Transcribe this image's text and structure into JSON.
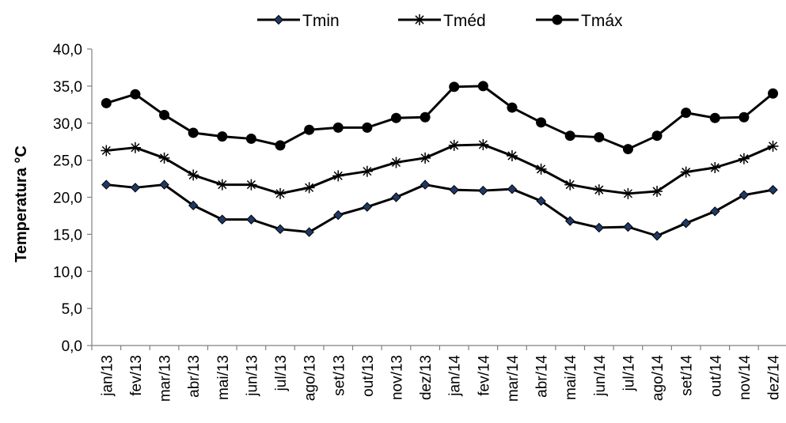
{
  "chart_data": {
    "type": "line",
    "title": "",
    "xlabel": "",
    "ylabel": "Temperatura °C",
    "ylim": [
      0,
      40
    ],
    "yticks": [
      "0,0",
      "5,0",
      "10,0",
      "15,0",
      "20,0",
      "25,0",
      "30,0",
      "35,0",
      "40,0"
    ],
    "grid": false,
    "legend_position": "top",
    "categories": [
      "jan/13",
      "fev/13",
      "mar/13",
      "abr/13",
      "mai/13",
      "jun/13",
      "jul/13",
      "ago/13",
      "set/13",
      "out/13",
      "nov/13",
      "dez/13",
      "jan/14",
      "fev/14",
      "mar/14",
      "abr/14",
      "mai/14",
      "jun/14",
      "jul/14",
      "ago/14",
      "set/14",
      "out/14",
      "nov/14",
      "dez/14"
    ],
    "series": [
      {
        "name": "Tmin",
        "marker": "diamond",
        "marker_color": "#1f3864",
        "values": [
          21.7,
          21.3,
          21.7,
          18.9,
          17.0,
          17.0,
          15.7,
          15.3,
          17.6,
          18.7,
          20.0,
          21.7,
          21.0,
          20.9,
          21.1,
          19.5,
          16.8,
          15.9,
          16.0,
          14.8,
          16.5,
          18.1,
          20.3,
          21.0
        ]
      },
      {
        "name": "Tméd",
        "marker": "asterisk",
        "marker_color": "#000000",
        "values": [
          26.3,
          26.7,
          25.3,
          23.0,
          21.7,
          21.7,
          20.5,
          21.3,
          22.9,
          23.5,
          24.7,
          25.3,
          27.0,
          27.1,
          25.6,
          23.8,
          21.7,
          21.0,
          20.5,
          20.8,
          23.4,
          24.0,
          25.2,
          26.9
        ]
      },
      {
        "name": "Tmáx",
        "marker": "circle",
        "marker_color": "#000000",
        "values": [
          32.7,
          33.9,
          31.1,
          28.7,
          28.2,
          27.9,
          27.0,
          29.1,
          29.4,
          29.4,
          30.7,
          30.8,
          34.9,
          35.0,
          32.1,
          30.1,
          28.3,
          28.1,
          26.5,
          28.3,
          31.4,
          30.7,
          30.8,
          34.0
        ]
      }
    ]
  }
}
